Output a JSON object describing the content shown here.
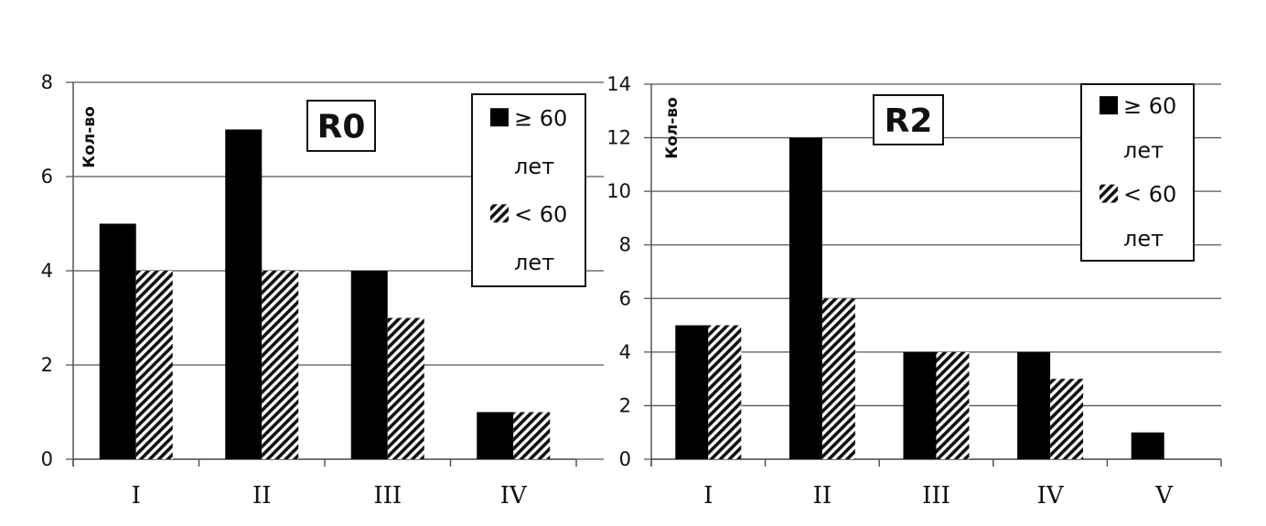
{
  "chart_data": [
    {
      "type": "bar",
      "title": "R0",
      "ylabel": "Кол-во",
      "xlabel": "",
      "categories": [
        "I",
        "II",
        "III",
        "IV"
      ],
      "ylim": [
        0,
        8
      ],
      "yticks": [
        0,
        2,
        4,
        6,
        8
      ],
      "grid": true,
      "legend_position": "top-right",
      "series": [
        {
          "name": "≥ 60 лет",
          "legend_line1": "≥ 60",
          "legend_line2": "лет",
          "style": "solid",
          "color": "#000000",
          "values": [
            5,
            7,
            4,
            1
          ]
        },
        {
          "name": "< 60 лет",
          "legend_line1": "< 60",
          "legend_line2": "лет",
          "style": "hatched",
          "color": "#000000",
          "values": [
            4,
            4,
            3,
            1
          ]
        }
      ]
    },
    {
      "type": "bar",
      "title": "R2",
      "ylabel": "Кол-во",
      "xlabel": "",
      "categories": [
        "I",
        "II",
        "III",
        "IV",
        "V"
      ],
      "ylim": [
        0,
        14
      ],
      "yticks": [
        0,
        2,
        4,
        6,
        8,
        10,
        12,
        14
      ],
      "grid": true,
      "legend_position": "top-right",
      "series": [
        {
          "name": "≥ 60 лет",
          "legend_line1": "≥ 60",
          "legend_line2": "лет",
          "style": "solid",
          "color": "#000000",
          "values": [
            5,
            12,
            4,
            4,
            1
          ]
        },
        {
          "name": "< 60 лет",
          "legend_line1": "< 60",
          "legend_line2": "лет",
          "style": "hatched",
          "color": "#000000",
          "values": [
            5,
            6,
            4,
            3,
            0
          ]
        }
      ]
    }
  ]
}
